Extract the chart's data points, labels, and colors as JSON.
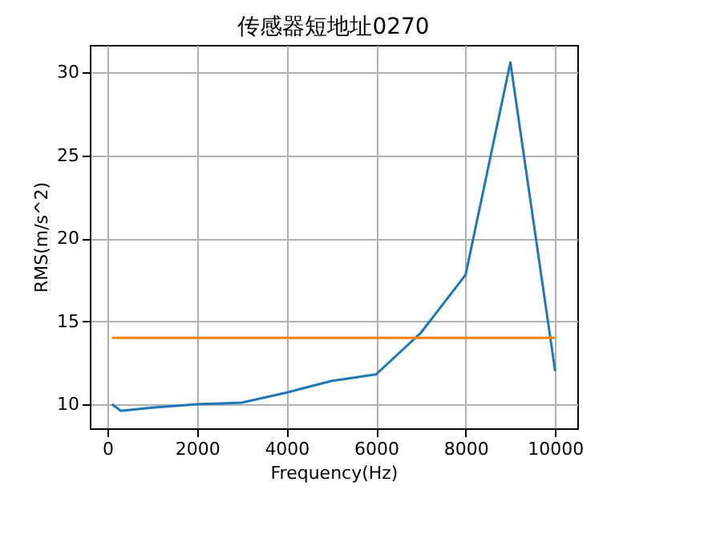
{
  "chart_data": {
    "type": "line",
    "title": "传感器短地址0270",
    "xlabel": "Frequency(Hz)",
    "ylabel": "RMS(m/s^2)",
    "series": [
      {
        "color": "#1f77b4",
        "x": [
          100,
          300,
          1000,
          2000,
          3000,
          4000,
          5000,
          6000,
          7000,
          8000,
          9000,
          10000
        ],
        "values": [
          10.0,
          9.6,
          9.8,
          10.0,
          10.1,
          10.7,
          11.4,
          11.8,
          14.3,
          17.8,
          30.6,
          12.0
        ]
      },
      {
        "color": "#ff7f0e",
        "x": [
          100,
          10000
        ],
        "values": [
          14.0,
          14.0
        ]
      }
    ],
    "xlim": [
      -395,
      10495
    ],
    "ylim": [
      8.55,
      31.65
    ],
    "xticks": [
      0,
      2000,
      4000,
      6000,
      8000,
      10000
    ],
    "yticks": [
      10,
      15,
      20,
      25,
      30
    ],
    "grid": true,
    "marker": "none",
    "line_style": "solid"
  }
}
